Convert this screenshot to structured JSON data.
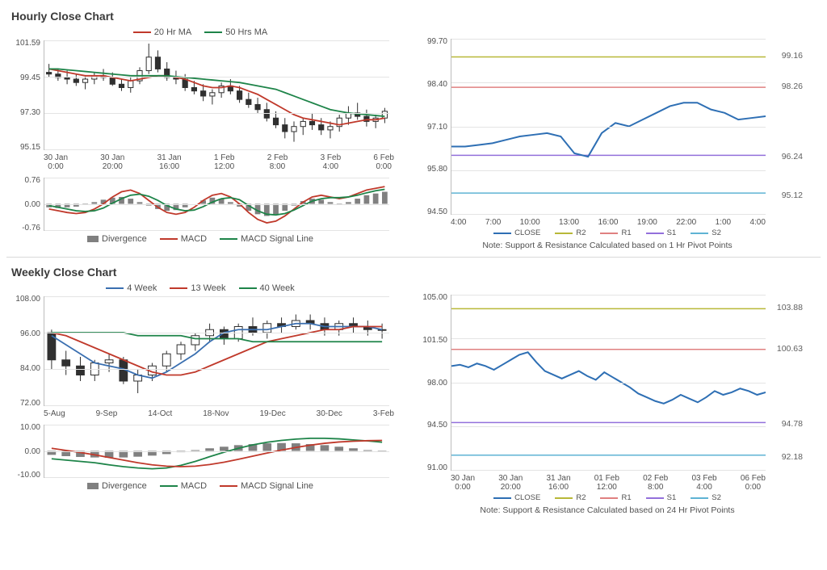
{
  "hourly": {
    "title": "Hourly Close Chart",
    "main": {
      "legend": [
        {
          "label": "20 Hr MA",
          "color": "#c0392b"
        },
        {
          "label": "50 Hrs MA",
          "color": "#1e8449"
        }
      ],
      "ylim": [
        95.15,
        101.59
      ],
      "yticks": [
        "101.59",
        "99.45",
        "97.30",
        "95.15"
      ],
      "xlabels": [
        "30 Jan\n0:00",
        "30 Jan\n20:00",
        "31 Jan\n16:00",
        "1 Feb\n12:00",
        "2 Feb\n8:00",
        "3 Feb\n4:00",
        "6 Feb\n0:00"
      ],
      "candles": [
        [
          99.7,
          100.2,
          99.4,
          99.6
        ],
        [
          99.6,
          99.9,
          99.2,
          99.4
        ],
        [
          99.4,
          99.8,
          99.0,
          99.3
        ],
        [
          99.3,
          99.6,
          98.9,
          99.1
        ],
        [
          99.1,
          99.5,
          98.7,
          99.3
        ],
        [
          99.3,
          99.7,
          99.0,
          99.5
        ],
        [
          99.5,
          99.9,
          99.2,
          99.4
        ],
        [
          99.4,
          99.7,
          98.9,
          99.0
        ],
        [
          99.0,
          99.3,
          98.6,
          98.8
        ],
        [
          98.8,
          99.4,
          98.5,
          99.2
        ],
        [
          99.2,
          100.0,
          99.0,
          99.8
        ],
        [
          99.8,
          101.4,
          99.6,
          100.6
        ],
        [
          100.6,
          101.0,
          99.7,
          99.9
        ],
        [
          99.9,
          100.3,
          99.2,
          99.4
        ],
        [
          99.4,
          99.8,
          99.0,
          99.3
        ],
        [
          99.3,
          99.6,
          98.6,
          98.8
        ],
        [
          98.8,
          99.2,
          98.4,
          98.6
        ],
        [
          98.6,
          99.0,
          98.0,
          98.3
        ],
        [
          98.3,
          98.7,
          97.8,
          98.5
        ],
        [
          98.5,
          99.1,
          98.2,
          98.9
        ],
        [
          98.9,
          99.3,
          98.4,
          98.6
        ],
        [
          98.6,
          98.9,
          97.9,
          98.1
        ],
        [
          98.1,
          98.5,
          97.6,
          97.8
        ],
        [
          97.8,
          98.2,
          97.3,
          97.5
        ],
        [
          97.5,
          97.9,
          96.8,
          97.0
        ],
        [
          97.0,
          97.4,
          96.4,
          96.6
        ],
        [
          96.6,
          97.0,
          95.8,
          96.2
        ],
        [
          96.2,
          96.8,
          95.6,
          96.5
        ],
        [
          96.5,
          97.0,
          96.0,
          96.8
        ],
        [
          96.8,
          97.3,
          96.3,
          96.6
        ],
        [
          96.6,
          97.0,
          96.0,
          96.3
        ],
        [
          96.3,
          96.8,
          95.8,
          96.5
        ],
        [
          96.5,
          97.2,
          96.2,
          97.0
        ],
        [
          97.0,
          97.7,
          96.6,
          97.3
        ],
        [
          97.3,
          97.9,
          96.9,
          97.1
        ],
        [
          97.1,
          97.5,
          96.5,
          96.8
        ],
        [
          96.8,
          97.2,
          96.4,
          97.0
        ],
        [
          97.0,
          97.6,
          96.7,
          97.4
        ]
      ],
      "ma20_color": "#c0392b",
      "ma50_color": "#1e8449",
      "ma20": [
        99.9,
        99.8,
        99.7,
        99.6,
        99.5,
        99.5,
        99.5,
        99.4,
        99.3,
        99.2,
        99.3,
        99.4,
        99.5,
        99.5,
        99.4,
        99.3,
        99.1,
        98.9,
        98.8,
        98.8,
        98.9,
        98.8,
        98.6,
        98.4,
        98.1,
        97.8,
        97.5,
        97.2,
        97.0,
        96.9,
        96.8,
        96.7,
        96.6,
        96.7,
        96.8,
        96.9,
        96.9,
        97.0
      ],
      "ma50": [
        99.9,
        99.9,
        99.85,
        99.8,
        99.75,
        99.7,
        99.65,
        99.6,
        99.55,
        99.5,
        99.5,
        99.5,
        99.5,
        99.5,
        99.45,
        99.4,
        99.35,
        99.3,
        99.25,
        99.2,
        99.15,
        99.1,
        99.0,
        98.9,
        98.8,
        98.7,
        98.5,
        98.3,
        98.1,
        97.9,
        97.7,
        97.5,
        97.4,
        97.3,
        97.25,
        97.2,
        97.15,
        97.1
      ]
    },
    "macd": {
      "ylim": [
        -0.76,
        0.76
      ],
      "yticks": [
        "0.76",
        "0.00",
        "-0.76"
      ],
      "legend": [
        {
          "label": "Divergence",
          "type": "bar",
          "color": "#808080"
        },
        {
          "label": "MACD",
          "color": "#c0392b"
        },
        {
          "label": "MACD Signal Line",
          "color": "#1e8449"
        }
      ],
      "hist": [
        -0.1,
        -0.12,
        -0.1,
        -0.08,
        -0.02,
        0.05,
        0.12,
        0.18,
        0.2,
        0.15,
        0.05,
        -0.05,
        -0.15,
        -0.2,
        -0.18,
        -0.1,
        0.0,
        0.1,
        0.18,
        0.15,
        0.05,
        -0.08,
        -0.2,
        -0.3,
        -0.35,
        -0.3,
        -0.2,
        -0.05,
        0.08,
        0.15,
        0.12,
        0.05,
        -0.02,
        0.05,
        0.15,
        0.25,
        0.3,
        0.35
      ],
      "macd_color": "#c0392b",
      "signal_color": "#1e8449",
      "macd_line": [
        -0.15,
        -0.2,
        -0.25,
        -0.28,
        -0.25,
        -0.15,
        0.0,
        0.2,
        0.35,
        0.4,
        0.3,
        0.1,
        -0.1,
        -0.25,
        -0.3,
        -0.25,
        -0.1,
        0.1,
        0.25,
        0.3,
        0.2,
        0.0,
        -0.25,
        -0.45,
        -0.55,
        -0.5,
        -0.35,
        -0.15,
        0.05,
        0.2,
        0.25,
        0.2,
        0.15,
        0.2,
        0.3,
        0.4,
        0.45,
        0.5
      ],
      "signal_line": [
        -0.05,
        -0.1,
        -0.15,
        -0.2,
        -0.22,
        -0.2,
        -0.12,
        0.02,
        0.15,
        0.25,
        0.28,
        0.22,
        0.1,
        -0.05,
        -0.15,
        -0.2,
        -0.18,
        -0.08,
        0.05,
        0.15,
        0.18,
        0.12,
        -0.05,
        -0.2,
        -0.3,
        -0.32,
        -0.28,
        -0.18,
        -0.05,
        0.08,
        0.15,
        0.18,
        0.18,
        0.2,
        0.25,
        0.32,
        0.38,
        0.42
      ]
    },
    "pivot": {
      "ylim": [
        94.5,
        99.7
      ],
      "yticks": [
        "99.70",
        "98.40",
        "97.10",
        "95.80",
        "94.50"
      ],
      "xlabels": [
        "4:00",
        "7:00",
        "10:00",
        "13:00",
        "16:00",
        "19:00",
        "22:00",
        "1:00",
        "4:00"
      ],
      "levels": [
        {
          "name": "R2",
          "value": 99.16,
          "label": "99.16",
          "color": "#b8b838"
        },
        {
          "name": "R1",
          "value": 98.26,
          "label": "98.26",
          "color": "#e08080"
        },
        {
          "name": "S1",
          "value": 96.24,
          "label": "96.24",
          "color": "#9370db"
        },
        {
          "name": "S2",
          "value": 95.12,
          "label": "95.12",
          "color": "#5fb3d4"
        }
      ],
      "close_color": "#2e6fb4",
      "close": [
        96.5,
        96.5,
        96.55,
        96.6,
        96.7,
        96.8,
        96.85,
        96.9,
        96.8,
        96.3,
        96.2,
        96.9,
        97.2,
        97.1,
        97.3,
        97.5,
        97.7,
        97.8,
        97.8,
        97.6,
        97.5,
        97.3,
        97.35,
        97.4
      ],
      "legend": [
        {
          "label": "CLOSE",
          "color": "#2e6fb4"
        },
        {
          "label": "R2",
          "color": "#b8b838"
        },
        {
          "label": "R1",
          "color": "#e08080"
        },
        {
          "label": "S1",
          "color": "#9370db"
        },
        {
          "label": "S2",
          "color": "#5fb3d4"
        }
      ],
      "note": "Note: Support & Resistance Calculated based on 1 Hr Pivot Points"
    }
  },
  "weekly": {
    "title": "Weekly Close Chart",
    "main": {
      "legend": [
        {
          "label": "4 Week",
          "color": "#3a6fb0"
        },
        {
          "label": "13 Week",
          "color": "#c0392b"
        },
        {
          "label": "40 Week",
          "color": "#1e8449"
        }
      ],
      "ylim": [
        72.0,
        108.0
      ],
      "yticks": [
        "108.00",
        "96.00",
        "84.00",
        "72.00"
      ],
      "xlabels": [
        "5-Aug",
        "9-Sep",
        "14-Oct",
        "18-Nov",
        "19-Dec",
        "30-Dec",
        "3-Feb"
      ],
      "candles": [
        [
          96,
          97,
          84,
          87
        ],
        [
          87,
          90,
          82,
          85
        ],
        [
          85,
          88,
          80,
          82
        ],
        [
          82,
          87,
          80,
          86
        ],
        [
          86,
          89,
          83,
          87
        ],
        [
          87,
          88,
          79,
          80
        ],
        [
          80,
          84,
          76,
          82
        ],
        [
          82,
          86,
          80,
          85
        ],
        [
          85,
          90,
          83,
          89
        ],
        [
          89,
          93,
          87,
          92
        ],
        [
          92,
          96,
          90,
          95
        ],
        [
          95,
          99,
          93,
          97
        ],
        [
          97,
          98,
          92,
          94
        ],
        [
          94,
          99,
          93,
          98
        ],
        [
          98,
          101,
          95,
          96
        ],
        [
          96,
          100,
          94,
          99
        ],
        [
          99,
          101,
          96,
          98
        ],
        [
          98,
          102,
          97,
          100
        ],
        [
          100,
          102,
          97,
          99
        ],
        [
          99,
          101,
          95,
          97
        ],
        [
          97,
          100,
          95,
          99
        ],
        [
          99,
          101,
          96,
          98
        ],
        [
          98,
          100,
          95,
          97
        ],
        [
          97,
          99,
          94,
          97
        ]
      ],
      "w4_color": "#3a6fb0",
      "w13_color": "#c0392b",
      "w40_color": "#1e8449",
      "w4": [
        95,
        92,
        89,
        86,
        85,
        84,
        82,
        81,
        83,
        86,
        89,
        93,
        96,
        97,
        97,
        97,
        98,
        99,
        99,
        98,
        98,
        98,
        98,
        97
      ],
      "w13": [
        96,
        95,
        93,
        91,
        89,
        87,
        85,
        83,
        82,
        82,
        83,
        85,
        87,
        89,
        91,
        93,
        94,
        95,
        96,
        97,
        97,
        98,
        98,
        98
      ],
      "w40": [
        96,
        96,
        96,
        96,
        96,
        96,
        95,
        95,
        95,
        95,
        94,
        94,
        94,
        94,
        93,
        93,
        93,
        93,
        93,
        93,
        93,
        93,
        93,
        93
      ]
    },
    "macd": {
      "ylim": [
        -10.0,
        10.0
      ],
      "yticks": [
        "10.00",
        "0.00",
        "-10.00"
      ],
      "legend": [
        {
          "label": "Divergence",
          "type": "bar",
          "color": "#808080"
        },
        {
          "label": "MACD",
          "color": "#1e8449"
        },
        {
          "label": "MACD Signal Line",
          "color": "#c0392b"
        }
      ],
      "hist": [
        -1.5,
        -2,
        -2.3,
        -2.5,
        -2.6,
        -2.5,
        -2.2,
        -1.8,
        -1.2,
        -0.5,
        0.3,
        1.0,
        1.6,
        2.2,
        2.6,
        2.9,
        3.0,
        2.9,
        2.6,
        2.2,
        1.6,
        1.0,
        0.3,
        -0.3
      ],
      "macd_color": "#1e8449",
      "signal_color": "#c0392b",
      "macd_line": [
        -3,
        -3.5,
        -4,
        -4.5,
        -5.3,
        -6.0,
        -6.5,
        -6.8,
        -6.5,
        -5.5,
        -4.0,
        -2.2,
        -0.5,
        1.0,
        2.3,
        3.3,
        4.0,
        4.5,
        4.8,
        4.8,
        4.6,
        4.2,
        3.8,
        3.3
      ],
      "signal_line": [
        1,
        0.2,
        -0.6,
        -1.5,
        -2.5,
        -3.5,
        -4.5,
        -5.3,
        -5.8,
        -6.0,
        -5.8,
        -5.2,
        -4.3,
        -3.2,
        -2.0,
        -0.8,
        0.3,
        1.3,
        2.2,
        2.9,
        3.4,
        3.7,
        3.9,
        4.0
      ]
    },
    "pivot": {
      "ylim": [
        91.0,
        105.0
      ],
      "yticks": [
        "105.00",
        "101.50",
        "98.00",
        "94.50",
        "91.00"
      ],
      "xlabels": [
        "30 Jan\n0:00",
        "30 Jan\n20:00",
        "31 Jan\n16:00",
        "01 Feb\n12:00",
        "02 Feb\n8:00",
        "03 Feb\n4:00",
        "06 Feb\n0:00"
      ],
      "levels": [
        {
          "name": "R2",
          "value": 103.88,
          "label": "103.88",
          "color": "#b8b838"
        },
        {
          "name": "R1",
          "value": 100.63,
          "label": "100.63",
          "color": "#e08080"
        },
        {
          "name": "S1",
          "value": 94.78,
          "label": "94.78",
          "color": "#9370db"
        },
        {
          "name": "S2",
          "value": 92.18,
          "label": "92.18",
          "color": "#5fb3d4"
        }
      ],
      "close_color": "#2e6fb4",
      "close": [
        99.3,
        99.4,
        99.2,
        99.5,
        99.3,
        99.0,
        99.4,
        99.8,
        100.2,
        100.4,
        99.6,
        98.9,
        98.6,
        98.3,
        98.6,
        98.9,
        98.5,
        98.2,
        98.8,
        98.4,
        98.0,
        97.6,
        97.1,
        96.8,
        96.5,
        96.3,
        96.6,
        97.0,
        96.7,
        96.4,
        96.8,
        97.3,
        97.0,
        97.2,
        97.5,
        97.3,
        97.0,
        97.2
      ],
      "legend": [
        {
          "label": "CLOSE",
          "color": "#2e6fb4"
        },
        {
          "label": "R2",
          "color": "#b8b838"
        },
        {
          "label": "R1",
          "color": "#e08080"
        },
        {
          "label": "S1",
          "color": "#9370db"
        },
        {
          "label": "S2",
          "color": "#5fb3d4"
        }
      ],
      "note": "Note:  Support & Resistance Calculated based on 24 Hr Pivot Points"
    }
  },
  "style": {
    "grid_color": "#e4e4e4",
    "axis_color": "#bcbcbc",
    "text_color": "#505050",
    "candle_color": "#303030",
    "title_fontsize": 14,
    "label_fontsize": 10
  }
}
